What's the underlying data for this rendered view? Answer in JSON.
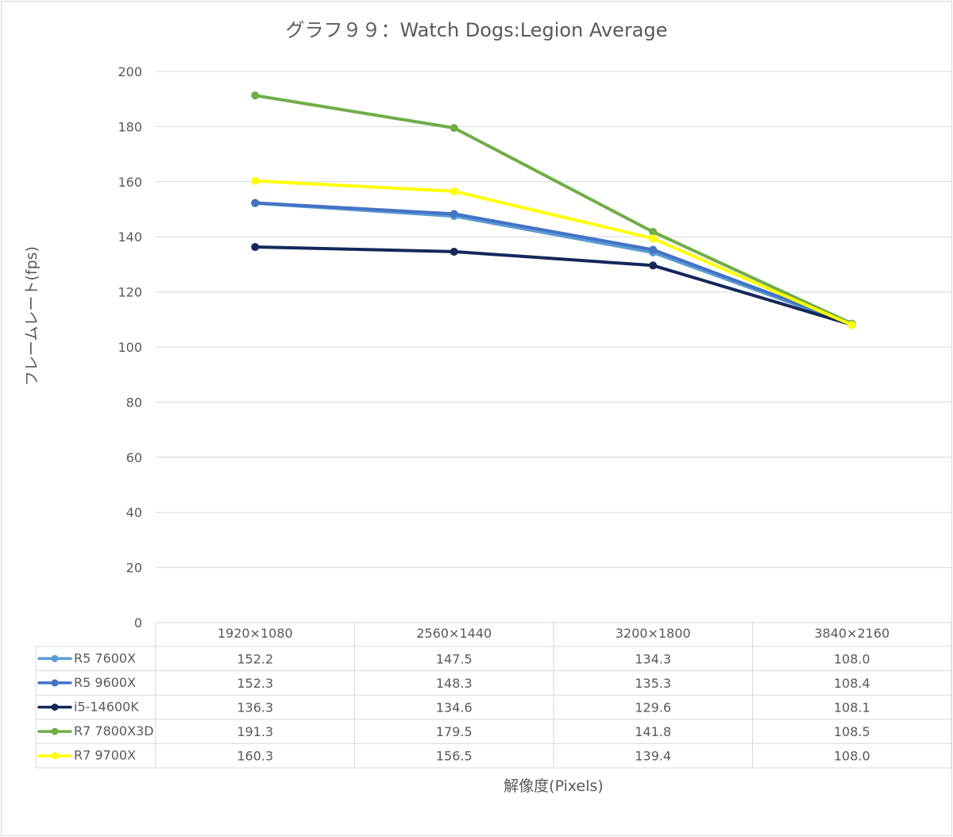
{
  "chart_data": {
    "type": "line",
    "title": "グラフ９９：Watch Dogs:Legion Average",
    "xlabel": "解像度(Pixels)",
    "ylabel": "フレームレート(fps)",
    "ylim": [
      0,
      200
    ],
    "yticks": [
      0,
      20,
      40,
      60,
      80,
      100,
      120,
      140,
      160,
      180,
      200
    ],
    "grid": true,
    "legend": "data-table",
    "categories": [
      "1920×1080",
      "2560×1440",
      "3200×1800",
      "3840×2160"
    ],
    "series": [
      {
        "name": "R5 7600X",
        "color": "#5B9BD5",
        "values": [
          152.2,
          147.5,
          134.3,
          108.0
        ],
        "labels": [
          "152.2",
          "147.5",
          "134.3",
          "108.0"
        ]
      },
      {
        "name": "R5 9600X",
        "color": "#4472C4",
        "values": [
          152.3,
          148.3,
          135.3,
          108.4
        ],
        "labels": [
          "152.3",
          "148.3",
          "135.3",
          "108.4"
        ]
      },
      {
        "name": "i5-14600K",
        "color": "#14285A",
        "values": [
          136.3,
          134.6,
          129.6,
          108.1
        ],
        "labels": [
          "136.3",
          "134.6",
          "129.6",
          "108.1"
        ]
      },
      {
        "name": "R7 7800X3D",
        "color": "#70AD47",
        "values": [
          191.3,
          179.5,
          141.8,
          108.5
        ],
        "labels": [
          "191.3",
          "179.5",
          "141.8",
          "108.5"
        ]
      },
      {
        "name": "R7 9700X",
        "color": "#FFFF00",
        "values": [
          160.3,
          156.5,
          139.4,
          108.0
        ],
        "labels": [
          "160.3",
          "156.5",
          "139.4",
          "108.0"
        ]
      }
    ]
  }
}
